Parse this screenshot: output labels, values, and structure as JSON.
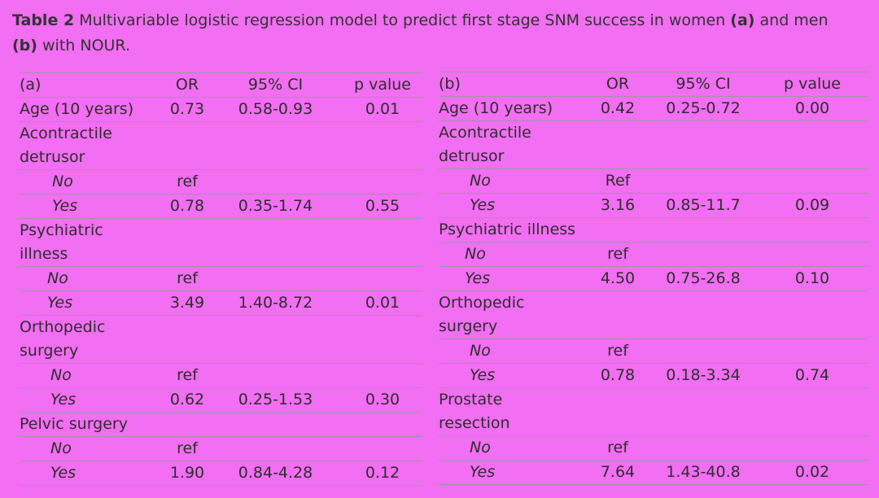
{
  "caption": {
    "label": "Table 2",
    "text_before_a": " Multivariable logistic regression model to predict first stage SNM success in women ",
    "a": "(a)",
    "text_between": " and men ",
    "b": "(b)",
    "text_after": " with NOUR."
  },
  "table_a": {
    "headers": {
      "var": "(a)",
      "or": "OR",
      "ci": "95% CI",
      "p": "p value"
    },
    "rows": [
      {
        "var": "Age (10 years)",
        "or": "0.73",
        "ci": "0.58-0.93",
        "p": "0.01"
      },
      {
        "var": "Acontractile",
        "or": "",
        "ci": "",
        "p": ""
      },
      {
        "var": "detrusor",
        "or": "",
        "ci": "",
        "p": ""
      },
      {
        "var": "No",
        "or": "ref",
        "ci": "",
        "p": ""
      },
      {
        "var": "Yes",
        "or": "0.78",
        "ci": "0.35-1.74",
        "p": "0.55"
      },
      {
        "var": "Psychiatric",
        "or": "",
        "ci": "",
        "p": ""
      },
      {
        "var": "illness",
        "or": "",
        "ci": "",
        "p": ""
      },
      {
        "var": "No",
        "or": "ref",
        "ci": "",
        "p": ""
      },
      {
        "var": "Yes",
        "or": "3.49",
        "ci": "1.40-8.72",
        "p": "0.01"
      },
      {
        "var": "Orthopedic",
        "or": "",
        "ci": "",
        "p": ""
      },
      {
        "var": "surgery",
        "or": "",
        "ci": "",
        "p": ""
      },
      {
        "var": "No",
        "or": "ref",
        "ci": "",
        "p": ""
      },
      {
        "var": "Yes",
        "or": "0.62",
        "ci": "0.25-1.53",
        "p": "0.30"
      },
      {
        "var": "Pelvic surgery",
        "or": "",
        "ci": "",
        "p": ""
      },
      {
        "var": "No",
        "or": "ref",
        "ci": "",
        "p": ""
      },
      {
        "var": "Yes",
        "or": "1.90",
        "ci": "0.84-4.28",
        "p": "0.12"
      }
    ]
  },
  "table_b": {
    "headers": {
      "var": "(b)",
      "or": "OR",
      "ci": "95% CI",
      "p": "p value"
    },
    "rows": [
      {
        "var": "Age (10 years)",
        "or": "0.42",
        "ci": "0.25-0.72",
        "p": "0.00"
      },
      {
        "var": "Acontractile",
        "or": "",
        "ci": "",
        "p": ""
      },
      {
        "var": "detrusor",
        "or": "",
        "ci": "",
        "p": ""
      },
      {
        "var": "No",
        "or": "Ref",
        "ci": "",
        "p": ""
      },
      {
        "var": "Yes",
        "or": "3.16",
        "ci": "0.85-11.7",
        "p": "0.09"
      },
      {
        "var": "Psychiatric illness",
        "or": "",
        "ci": "",
        "p": ""
      },
      {
        "var": "No",
        "or": "ref",
        "ci": "",
        "p": ""
      },
      {
        "var": "Yes",
        "or": "4.50",
        "ci": "0.75-26.8",
        "p": "0.10"
      },
      {
        "var": "Orthopedic",
        "or": "",
        "ci": "",
        "p": ""
      },
      {
        "var": "surgery",
        "or": "",
        "ci": "",
        "p": ""
      },
      {
        "var": "No",
        "or": "ref",
        "ci": "",
        "p": ""
      },
      {
        "var": "Yes",
        "or": "0.78",
        "ci": "0.18-3.34",
        "p": "0.74"
      },
      {
        "var": "Prostate",
        "or": "",
        "ci": "",
        "p": ""
      },
      {
        "var": "resection",
        "or": "",
        "ci": "",
        "p": ""
      },
      {
        "var": "No",
        "or": "ref",
        "ci": "",
        "p": ""
      },
      {
        "var": "Yes",
        "or": "7.64",
        "ci": "1.43-40.8",
        "p": "0.02"
      }
    ]
  }
}
